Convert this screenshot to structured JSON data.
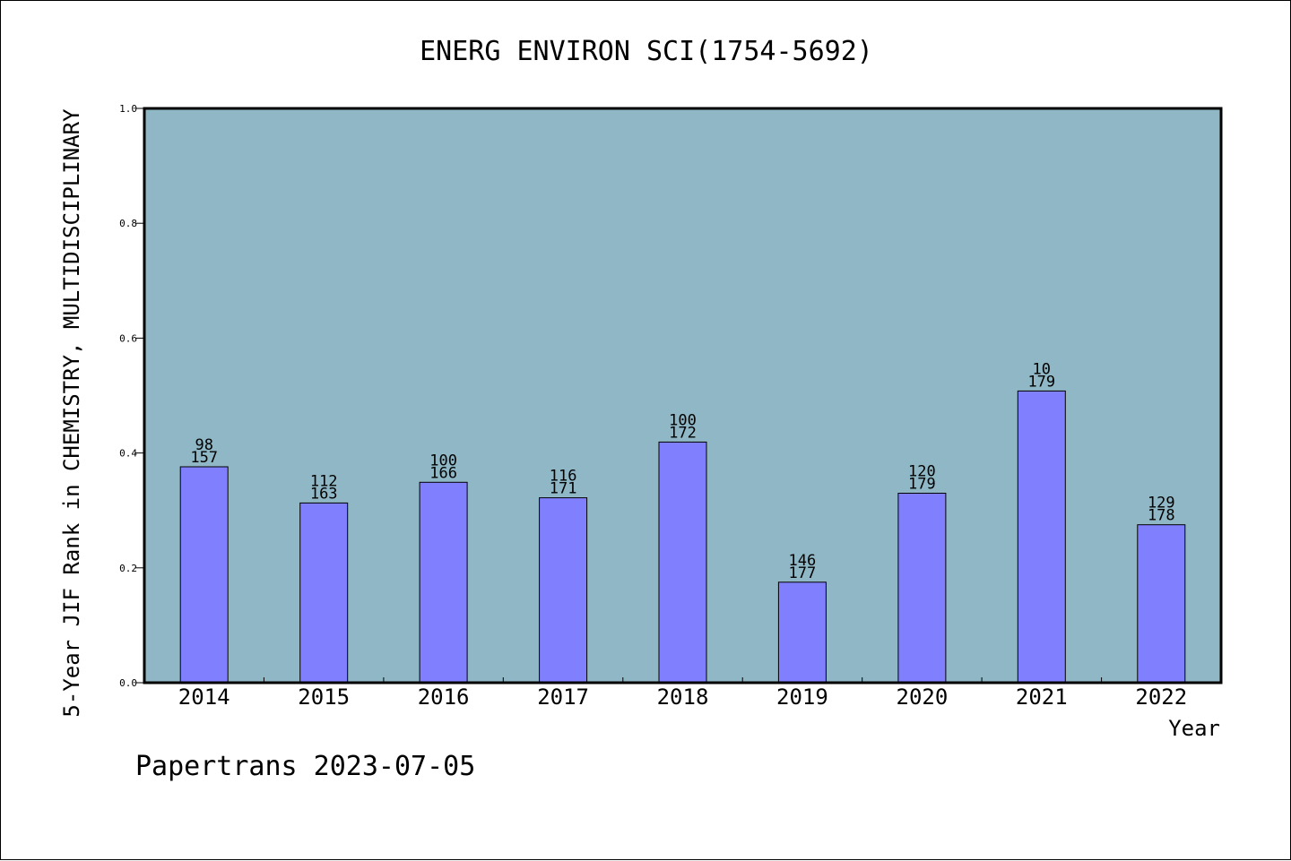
{
  "chart_data": {
    "type": "bar",
    "title": "ENERG ENVIRON SCI(1754-5692)",
    "xlabel": "Year",
    "ylabel": "5-Year JIF Rank in CHEMISTRY, MULTIDISCIPLINARY",
    "ylim": [
      0,
      1.0
    ],
    "yticks": [
      "0.0",
      "0.2",
      "0.4",
      "0.6",
      "0.8",
      "1.0"
    ],
    "categories": [
      "2014",
      "2015",
      "2016",
      "2017",
      "2018",
      "2019",
      "2020",
      "2021",
      "2022"
    ],
    "values": [
      0.376,
      0.313,
      0.349,
      0.322,
      0.419,
      0.175,
      0.33,
      0.508,
      0.275
    ],
    "labels_top": [
      "98",
      "112",
      "100",
      "116",
      "100",
      "146",
      "120",
      "10",
      "129"
    ],
    "labels_bottom": [
      "157",
      "163",
      "166",
      "171",
      "172",
      "177",
      "179",
      "179",
      "178"
    ],
    "grid": false,
    "colors": {
      "plot_bg": "#8fb7c5",
      "bar": "#8080ff",
      "axis": "#000000"
    }
  },
  "footer": "Papertrans 2023-07-05"
}
